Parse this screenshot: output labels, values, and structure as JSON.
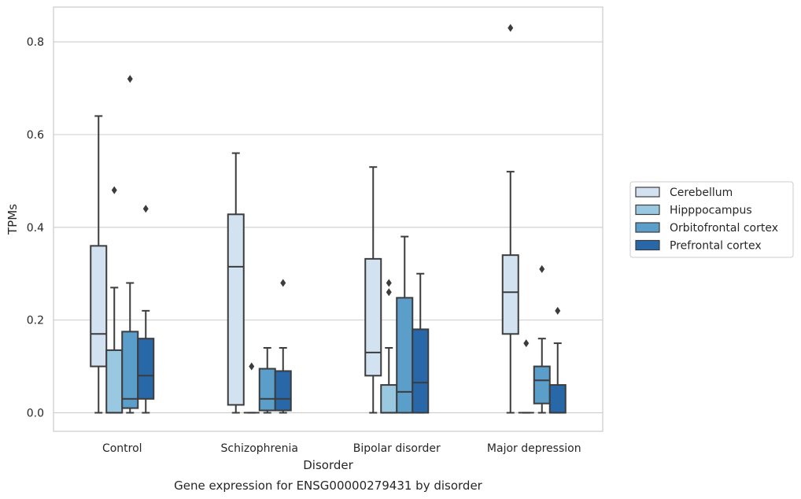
{
  "chart_data": {
    "type": "box",
    "title": "",
    "caption": "Gene expression for ENSG00000279431 by disorder",
    "xlabel": "Disorder",
    "ylabel": "TPMs",
    "ylim": [
      -0.04,
      0.875
    ],
    "yticks": [
      0.0,
      0.2,
      0.4,
      0.6,
      0.8
    ],
    "ytick_labels": [
      "0.0",
      "0.2",
      "0.4",
      "0.6",
      "0.8"
    ],
    "grid": "horizontal",
    "legend_position": "right",
    "categories": [
      "Control",
      "Schizophrenia",
      "Bipolar disorder",
      "Major depression"
    ],
    "series": [
      {
        "name": "Cerebellum",
        "color": "#d2e2f1",
        "boxes": [
          {
            "whisker_low": 0.0,
            "q1": 0.1,
            "median": 0.17,
            "q3": 0.36,
            "whisker_high": 0.64,
            "outliers": []
          },
          {
            "whisker_low": 0.0,
            "q1": 0.017,
            "median": 0.315,
            "q3": 0.428,
            "whisker_high": 0.56,
            "outliers": []
          },
          {
            "whisker_low": 0.0,
            "q1": 0.08,
            "median": 0.13,
            "q3": 0.332,
            "whisker_high": 0.53,
            "outliers": []
          },
          {
            "whisker_low": 0.0,
            "q1": 0.17,
            "median": 0.26,
            "q3": 0.34,
            "whisker_high": 0.52,
            "outliers": [
              0.83
            ]
          }
        ]
      },
      {
        "name": "Hipppocampus",
        "color": "#9ac8e0",
        "boxes": [
          {
            "whisker_low": 0.0,
            "q1": 0.0,
            "median": 0.0,
            "q3": 0.135,
            "whisker_high": 0.27,
            "outliers": [
              0.48
            ]
          },
          {
            "whisker_low": 0.0,
            "q1": 0.0,
            "median": 0.0,
            "q3": 0.0,
            "whisker_high": 0.0,
            "outliers": [
              0.1
            ]
          },
          {
            "whisker_low": 0.0,
            "q1": 0.0,
            "median": 0.0,
            "q3": 0.06,
            "whisker_high": 0.14,
            "outliers": [
              0.26,
              0.28
            ]
          },
          {
            "whisker_low": 0.0,
            "q1": 0.0,
            "median": 0.0,
            "q3": 0.0,
            "whisker_high": 0.0,
            "outliers": [
              0.15
            ]
          }
        ]
      },
      {
        "name": "Orbitofrontal cortex",
        "color": "#5a9ec9",
        "boxes": [
          {
            "whisker_low": 0.0,
            "q1": 0.01,
            "median": 0.03,
            "q3": 0.175,
            "whisker_high": 0.28,
            "outliers": [
              0.72
            ]
          },
          {
            "whisker_low": 0.0,
            "q1": 0.005,
            "median": 0.03,
            "q3": 0.095,
            "whisker_high": 0.14,
            "outliers": []
          },
          {
            "whisker_low": 0.0,
            "q1": 0.0,
            "median": 0.045,
            "q3": 0.248,
            "whisker_high": 0.38,
            "outliers": []
          },
          {
            "whisker_low": 0.0,
            "q1": 0.02,
            "median": 0.07,
            "q3": 0.1,
            "whisker_high": 0.16,
            "outliers": [
              0.31
            ]
          }
        ]
      },
      {
        "name": "Prefrontal cortex",
        "color": "#2868a8",
        "boxes": [
          {
            "whisker_low": 0.0,
            "q1": 0.03,
            "median": 0.08,
            "q3": 0.16,
            "whisker_high": 0.22,
            "outliers": [
              0.44
            ]
          },
          {
            "whisker_low": 0.0,
            "q1": 0.005,
            "median": 0.03,
            "q3": 0.09,
            "whisker_high": 0.14,
            "outliers": [
              0.28
            ]
          },
          {
            "whisker_low": 0.0,
            "q1": 0.0,
            "median": 0.065,
            "q3": 0.18,
            "whisker_high": 0.3,
            "outliers": []
          },
          {
            "whisker_low": 0.0,
            "q1": 0.0,
            "median": 0.0,
            "q3": 0.06,
            "whisker_high": 0.15,
            "outliers": [
              0.22
            ]
          }
        ]
      }
    ]
  }
}
